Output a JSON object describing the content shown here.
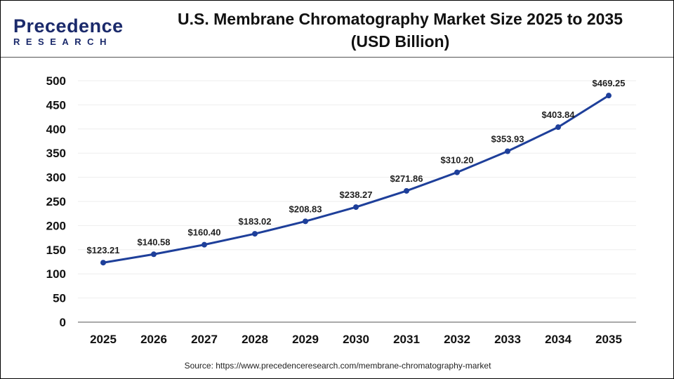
{
  "logo": {
    "text_top": "Precedence",
    "text_bottom": "RESEARCH"
  },
  "title_line1": "U.S. Membrane Chromatography Market Size 2025 to 2035",
  "title_line2": "(USD Billion)",
  "source": "Source: https://www.precedenceresearch.com/membrane-chromatography-market",
  "chart_data": {
    "type": "line",
    "title": "U.S. Membrane Chromatography Market Size 2025 to 2035 (USD Billion)",
    "categories": [
      "2025",
      "2026",
      "2027",
      "2028",
      "2029",
      "2030",
      "2031",
      "2032",
      "2033",
      "2034",
      "2035"
    ],
    "values": [
      123.21,
      140.58,
      160.4,
      183.02,
      208.83,
      238.27,
      271.86,
      310.2,
      353.93,
      403.84,
      469.25
    ],
    "data_labels": [
      "$123.21",
      "$140.58",
      "$160.40",
      "$183.02",
      "$208.83",
      "$238.27",
      "$271.86",
      "$310.20",
      "$353.93",
      "$403.84",
      "$469.25"
    ],
    "ylim": [
      0,
      500
    ],
    "yticks": [
      0,
      50,
      100,
      150,
      200,
      250,
      300,
      350,
      400,
      450,
      500
    ],
    "grid": true,
    "line_color": "#1e3f9a"
  }
}
